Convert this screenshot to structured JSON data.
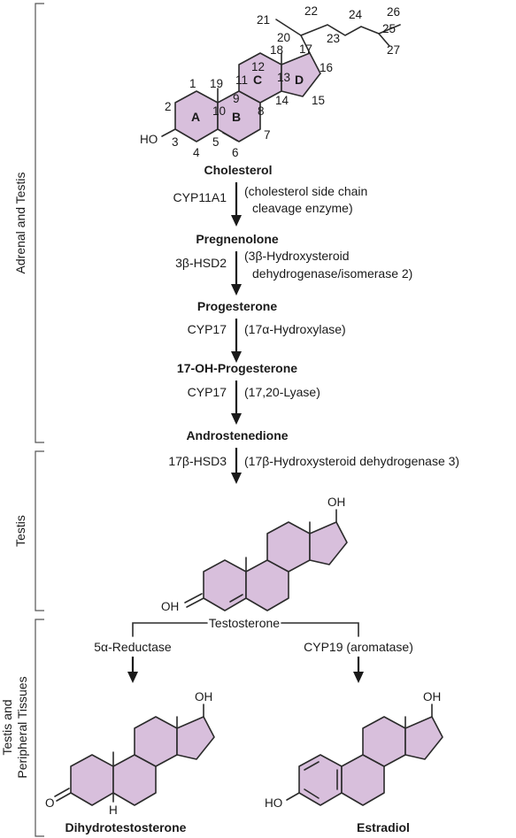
{
  "sections": {
    "adrenal_testis": "Adrenal and Testis",
    "testis": "Testis",
    "peripheral_line1": "Testis and",
    "peripheral_line2": "Peripheral Tissues"
  },
  "compounds": {
    "cholesterol": "Cholesterol",
    "pregnenolone": "Pregnenolone",
    "progesterone": "Progesterone",
    "oh_progesterone": "17-OH-Progesterone",
    "androstenedione": "Androstenedione",
    "testosterone": "Testosterone",
    "dht": "Dihydrotestosterone",
    "estradiol": "Estradiol"
  },
  "steps": [
    {
      "enzyme": "CYP11A1",
      "desc": [
        "(cholesterol side chain",
        "cleavage enzyme)"
      ]
    },
    {
      "enzyme": "3β-HSD2",
      "desc": [
        "(3β-Hydroxysteroid",
        "dehydrogenase/isomerase 2)"
      ]
    },
    {
      "enzyme": "CYP17",
      "desc": [
        "(17α-Hydroxylase)"
      ]
    },
    {
      "enzyme": "CYP17",
      "desc": [
        "(17,20-Lyase)"
      ]
    },
    {
      "enzyme": "17β-HSD3",
      "desc": [
        "(17β-Hydroxysteroid dehydrogenase 3)"
      ]
    }
  ],
  "branches": {
    "left": "5α-Reductase",
    "right": "CYP19 (aromatase)"
  },
  "rings": {
    "a": "A",
    "b": "B",
    "c": "C",
    "d": "D"
  },
  "carbons": {
    "c1": "1",
    "c2": "2",
    "c3": "3",
    "c4": "4",
    "c5": "5",
    "c6": "6",
    "c7": "7",
    "c8": "8",
    "c9": "9",
    "c10": "10",
    "c11": "11",
    "c12": "12",
    "c13": "13",
    "c14": "14",
    "c15": "15",
    "c16": "16",
    "c17": "17",
    "c18": "18",
    "c19": "19",
    "c20": "20",
    "c21": "21",
    "c22": "22",
    "c23": "23",
    "c24": "24",
    "c25": "25",
    "c26": "26",
    "c27": "27"
  },
  "atoms": {
    "ho": "HO",
    "oh": "OH",
    "o": "O",
    "h": "H"
  },
  "colors": {
    "ring_fill": "#d8bfdc",
    "line": "#2b2b2b"
  }
}
